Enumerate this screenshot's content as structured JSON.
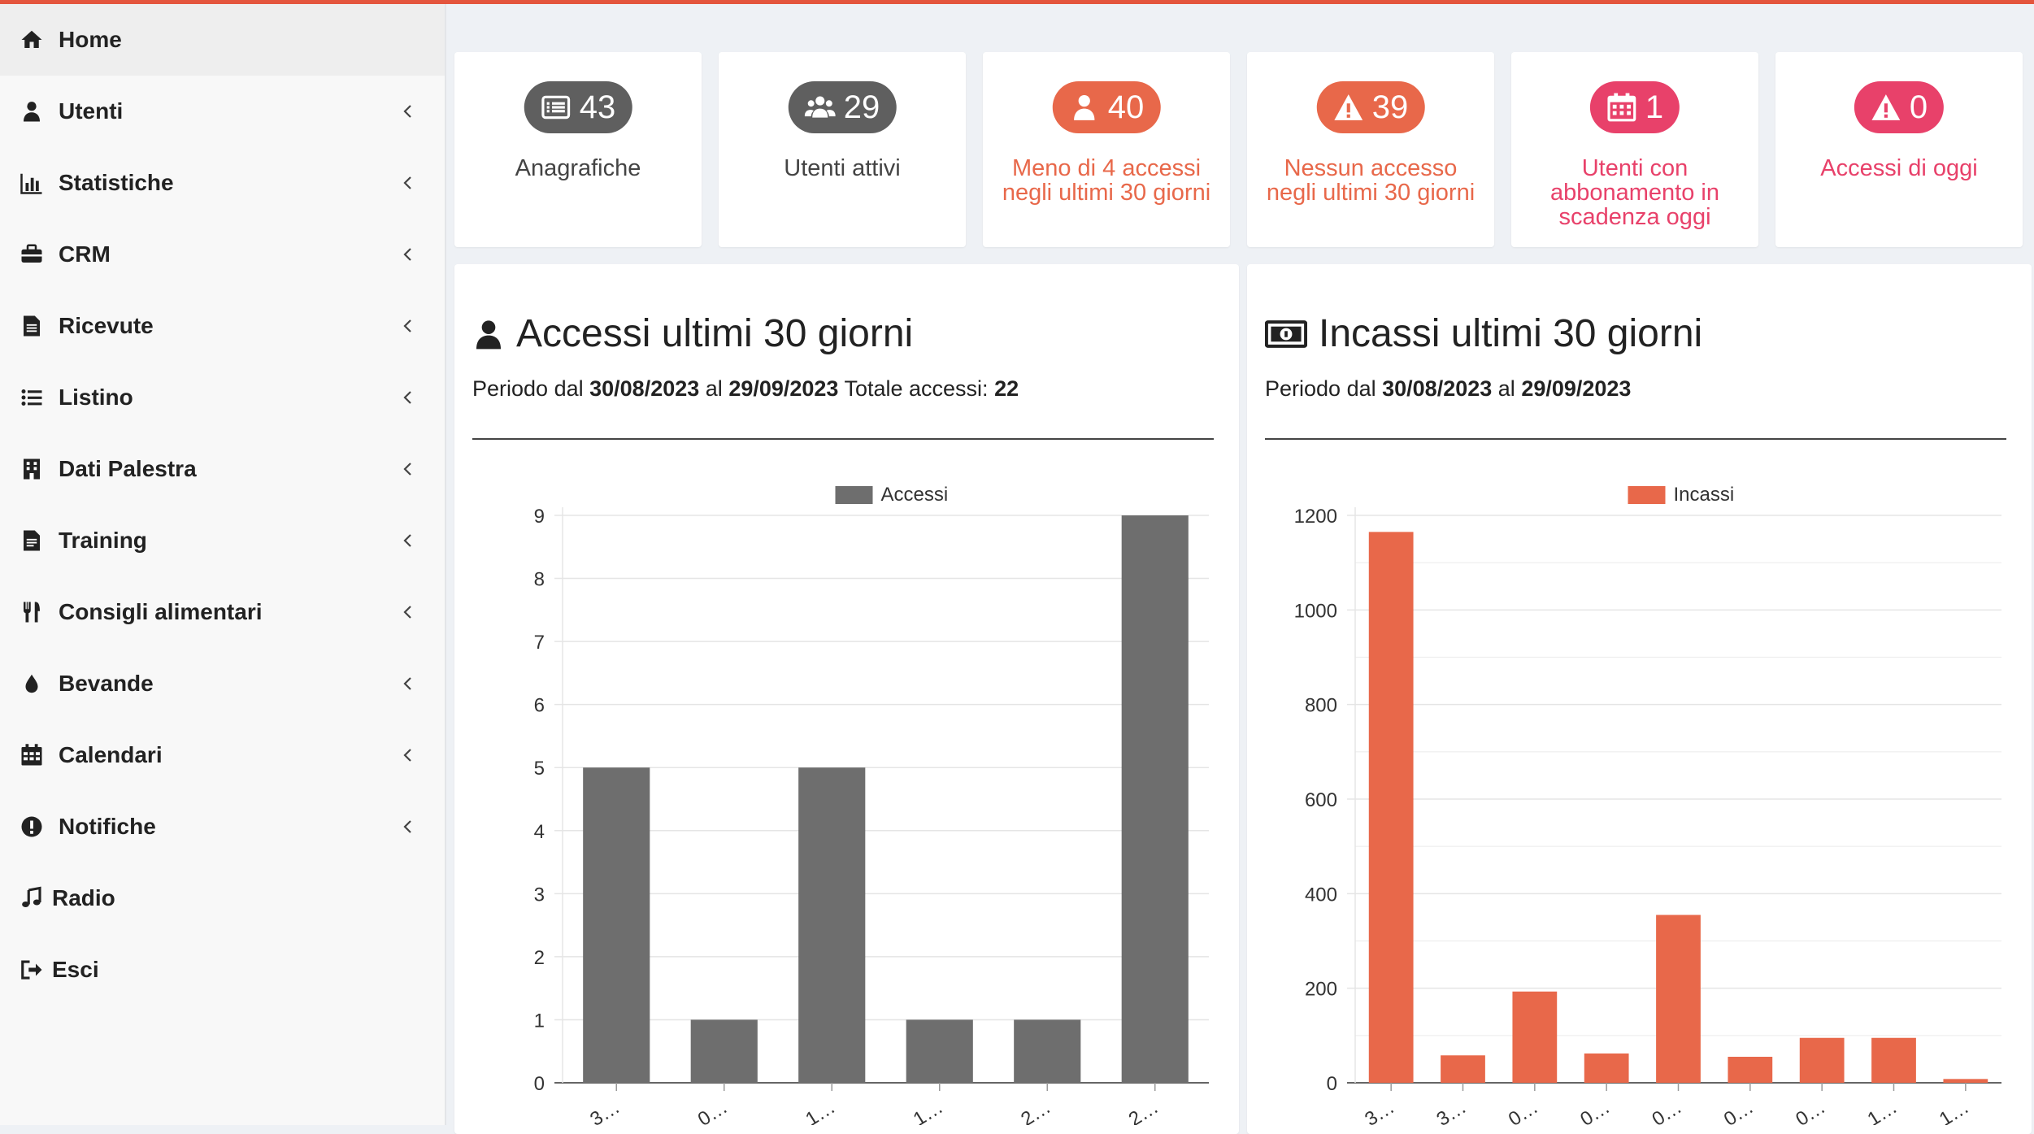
{
  "colors": {
    "accent": "#e4553d",
    "gray": "#6e6e6e",
    "orange": "#e8684a",
    "pink": "#e8416a"
  },
  "sidebar": {
    "items": [
      {
        "label": "Home",
        "icon": "home-icon",
        "active": true,
        "chevron": false
      },
      {
        "label": "Utenti",
        "icon": "user-icon",
        "chevron": true
      },
      {
        "label": "Statistiche",
        "icon": "bar-chart-icon",
        "chevron": true
      },
      {
        "label": "CRM",
        "icon": "briefcase-icon",
        "chevron": true
      },
      {
        "label": "Ricevute",
        "icon": "document-icon",
        "chevron": true
      },
      {
        "label": "Listino",
        "icon": "list-icon",
        "chevron": true
      },
      {
        "label": "Dati Palestra",
        "icon": "building-icon",
        "chevron": true
      },
      {
        "label": "Training",
        "icon": "file-text-icon",
        "chevron": true
      },
      {
        "label": "Consigli alimentari",
        "icon": "cutlery-icon",
        "chevron": true
      },
      {
        "label": "Bevande",
        "icon": "drop-icon",
        "chevron": true
      },
      {
        "label": "Calendari",
        "icon": "calendar-icon",
        "chevron": true
      },
      {
        "label": "Notifiche",
        "icon": "exclamation-circle-icon",
        "chevron": true
      },
      {
        "label": "Radio",
        "icon": "music-icon",
        "chevron": false
      },
      {
        "label": "Esci",
        "icon": "sign-out-icon",
        "chevron": false
      }
    ]
  },
  "stats": [
    {
      "value": "43",
      "label": "Anagrafiche",
      "icon": "list-alt-icon",
      "pill_color": "#5f5f5f",
      "label_color": "#444444"
    },
    {
      "value": "29",
      "label": "Utenti attivi",
      "icon": "users-icon",
      "pill_color": "#5f5f5f",
      "label_color": "#444444"
    },
    {
      "value": "40",
      "label": "Meno di 4 accessi negli ultimi 30 giorni",
      "icon": "user-icon",
      "pill_color": "#e8684a",
      "label_color": "#e8684a"
    },
    {
      "value": "39",
      "label": "Nessun accesso negli ultimi 30 giorni",
      "icon": "warning-icon",
      "pill_color": "#e8684a",
      "label_color": "#e8684a"
    },
    {
      "value": "1",
      "label": "Utenti con abbonamento in scadenza oggi",
      "icon": "calendar-icon",
      "pill_color": "#e8416a",
      "label_color": "#e8416a"
    },
    {
      "value": "0",
      "label": "Accessi di oggi",
      "icon": "warning-icon",
      "pill_color": "#e8416a",
      "label_color": "#e8416a"
    }
  ],
  "panels": {
    "accessi": {
      "title": "Accessi ultimi 30 giorni",
      "period_prefix": "Periodo dal",
      "from": "30/08/2023",
      "al": "al",
      "to": "29/09/2023",
      "total_label": "Totale accessi:",
      "total": "22"
    },
    "incassi": {
      "title": "Incassi ultimi 30 giorni",
      "period_prefix": "Periodo dal",
      "from": "30/08/2023",
      "al": "al",
      "to": "29/09/2023"
    }
  },
  "chart_data": [
    {
      "type": "bar",
      "categories": [
        "3…",
        "0…",
        "1…",
        "1…",
        "2…",
        "2…"
      ],
      "series": [
        {
          "name": "Accessi",
          "values": [
            5,
            1,
            5,
            1,
            1,
            9
          ],
          "color": "#6e6e6e"
        }
      ],
      "ylim": [
        0,
        9
      ],
      "yticks": [
        0,
        1,
        2,
        3,
        4,
        5,
        6,
        7,
        8,
        9
      ],
      "legend": "top-center",
      "grid": true
    },
    {
      "type": "bar",
      "categories": [
        "3…",
        "3…",
        "0…",
        "0…",
        "0…",
        "0…",
        "0…",
        "1…",
        "1…"
      ],
      "series": [
        {
          "name": "Incassi",
          "values": [
            1165,
            58,
            193,
            62,
            355,
            55,
            95,
            95,
            8
          ],
          "color": "#e8684a"
        }
      ],
      "ylim": [
        0,
        1200
      ],
      "yticks": [
        0,
        200,
        400,
        600,
        800,
        1000,
        1200
      ],
      "legend": "top-center",
      "grid": true
    }
  ]
}
